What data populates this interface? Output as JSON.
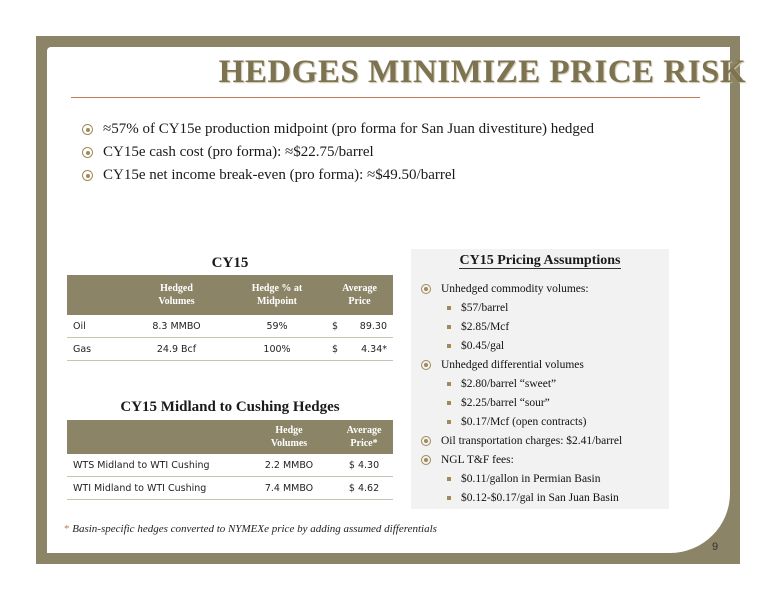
{
  "title": "HEDGES MINIMIZE PRICE RISK",
  "bullets": [
    "≈57% of CY15e production midpoint (pro forma for San Juan divestiture) hedged",
    "CY15e cash cost (pro forma): ≈$22.75/barrel",
    "CY15e net income break-even (pro forma):  ≈$49.50/barrel"
  ],
  "cy15": {
    "title": "CY15",
    "headers": [
      "",
      "Hedged\nVolumes",
      "Hedge % at\nMidpoint",
      "Average\nPrice"
    ],
    "rows": [
      {
        "name": "Oil",
        "volume": "8.3 MMBO",
        "pct": "59%",
        "cur": "$",
        "price": "89.30"
      },
      {
        "name": "Gas",
        "volume": "24.9 Bcf",
        "pct": "100%",
        "cur": "$",
        "price": "4.34*"
      }
    ]
  },
  "midland": {
    "title": "CY15 Midland to Cushing Hedges",
    "headers": [
      "",
      "Hedge\nVolumes",
      "Average\nPrice*"
    ],
    "rows": [
      {
        "name": "WTS Midland to WTI Cushing",
        "volume": "2.2 MMBO",
        "price": "$ 4.30"
      },
      {
        "name": "WTI Midland to WTI Cushing",
        "volume": "7.4 MMBO",
        "price": "$ 4.62"
      }
    ]
  },
  "assumptions": {
    "title": "CY15 Pricing Assumptions",
    "items": [
      {
        "level": 1,
        "text": "Unhedged commodity volumes:"
      },
      {
        "level": 2,
        "text": "$57/barrel"
      },
      {
        "level": 2,
        "text": "$2.85/Mcf"
      },
      {
        "level": 2,
        "text": "$0.45/gal"
      },
      {
        "level": 1,
        "text": "Unhedged differential volumes"
      },
      {
        "level": 2,
        "text": "$2.80/barrel “sweet”"
      },
      {
        "level": 2,
        "text": "$2.25/barrel “sour”"
      },
      {
        "level": 2,
        "text": "$0.17/Mcf (open contracts)"
      },
      {
        "level": 1,
        "text": "Oil transportation charges: $2.41/barrel"
      },
      {
        "level": 1,
        "text": "NGL T&F fees:"
      },
      {
        "level": 2,
        "text": "$0.11/gallon in Permian Basin"
      },
      {
        "level": 2,
        "text": "$0.12-$0.17/gal in San Juan Basin"
      }
    ]
  },
  "footnote": {
    "star": "*",
    "text": " Basin-specific hedges converted to NYMEXe price by adding assumed differentials"
  },
  "page_number": "9",
  "colors": {
    "frame": "#8b8466",
    "accent_rule": "#c47b56",
    "title": "#7d7350"
  }
}
